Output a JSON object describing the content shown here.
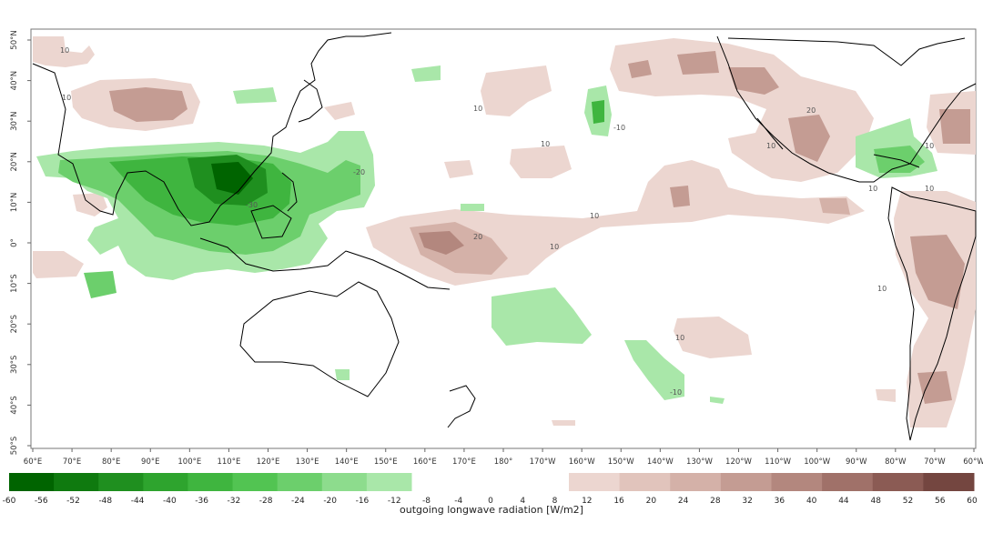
{
  "map": {
    "lon_labels": [
      "60°E",
      "70°E",
      "80°E",
      "90°E",
      "100°E",
      "110°E",
      "120°E",
      "130°E",
      "140°E",
      "150°E",
      "160°E",
      "170°E",
      "180°",
      "170°W",
      "160°W",
      "150°W",
      "140°W",
      "130°W",
      "120°W",
      "110°W",
      "100°W",
      "90°W",
      "80°W",
      "70°W",
      "60°W"
    ],
    "lat_labels": [
      "50°N",
      "40°N",
      "30°N",
      "20°N",
      "10°N",
      "0°",
      "10°S",
      "20°S",
      "30°S",
      "40°S",
      "50°S"
    ],
    "contour_labels": [
      "10",
      "10",
      "10",
      "10",
      "10",
      "10",
      "10",
      "10",
      "10",
      "10",
      "10",
      "10",
      "20",
      "20",
      "-10",
      "-20",
      "-30",
      "-10"
    ]
  },
  "colorbar": {
    "title": "outgoing longwave radiation [W/m2]",
    "tick_labels": [
      "-60",
      "-56",
      "-52",
      "-48",
      "-44",
      "-40",
      "-36",
      "-32",
      "-28",
      "-24",
      "-20",
      "-16",
      "-12",
      "-8",
      "-4",
      "0",
      "4",
      "8",
      "12",
      "16",
      "20",
      "24",
      "28",
      "32",
      "36",
      "40",
      "44",
      "48",
      "52",
      "56",
      "60"
    ],
    "negative_colors": [
      "#006400",
      "#0f7a0f",
      "#1f8f1f",
      "#2ea42e",
      "#3fb53f",
      "#52c452",
      "#6ccf6c",
      "#8ddc8d",
      "#a9e7a9"
    ],
    "positive_colors": [
      "#ecd6d0",
      "#e1c4bc",
      "#d4b1a8",
      "#c49c93",
      "#b3877e",
      "#a07169",
      "#8b5b54",
      "#744640"
    ]
  },
  "colors": {
    "land_outline": "#000000",
    "frame": "#666666"
  }
}
